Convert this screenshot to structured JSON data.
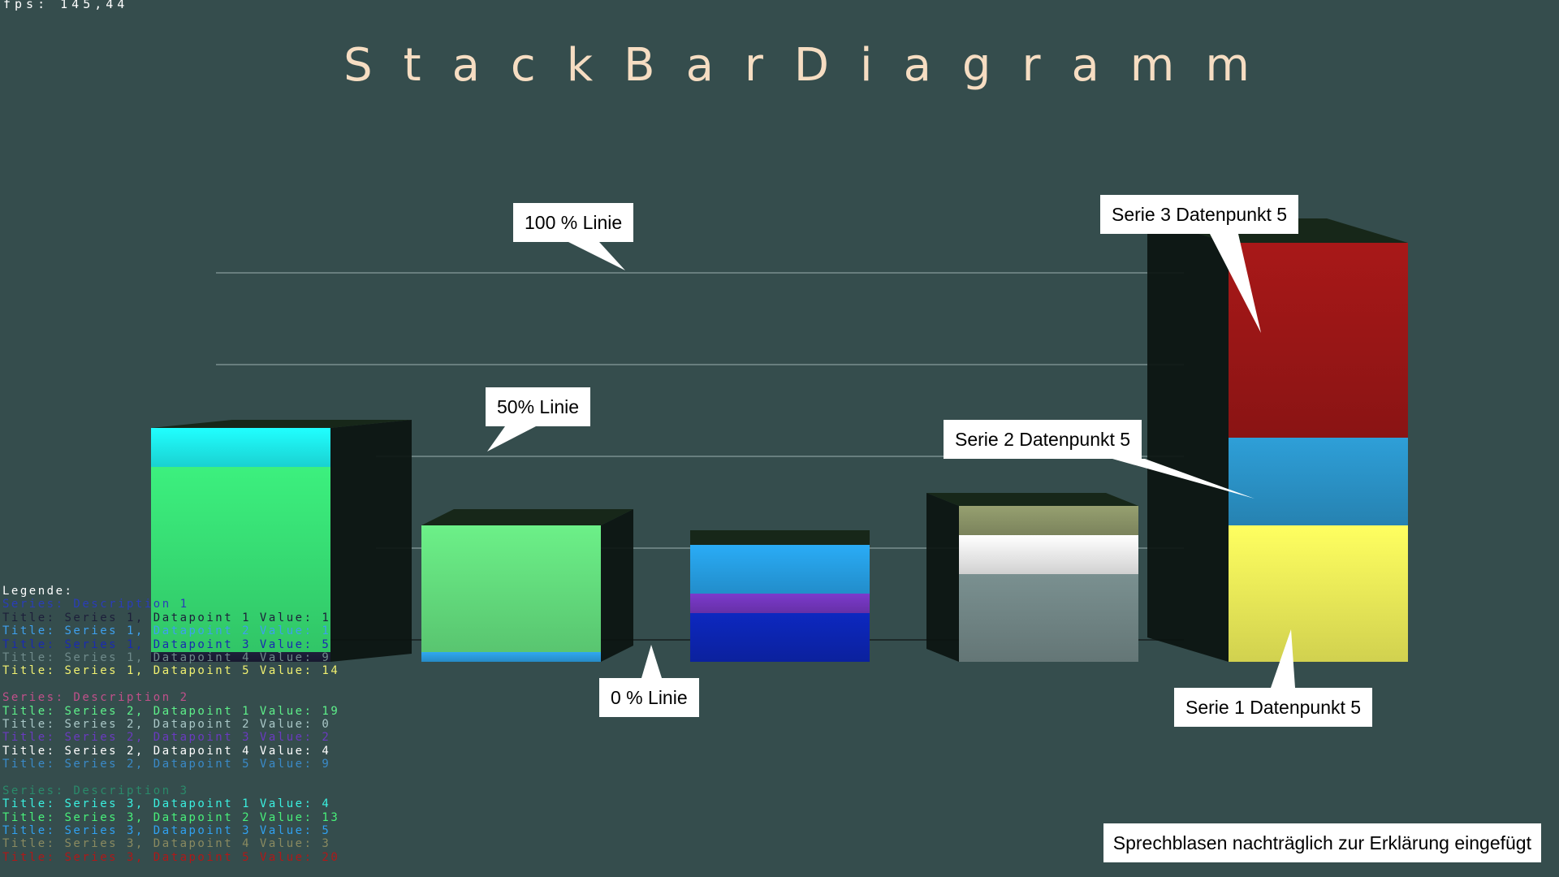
{
  "fps": "fps:  145,44",
  "title": "StackBarDiagramm",
  "note": "Sprechblasen nachträglich zur Erklärung eingefügt",
  "callouts": {
    "line100": "100 % Linie",
    "line50": "50% Linie",
    "line0": "0 % Linie",
    "s3p5": "Serie 3 Datenpunkt 5",
    "s2p5": "Serie 2 Datenpunkt 5",
    "s1p5": "Serie 1 Datenpunkt 5"
  },
  "legend": {
    "heading": "Legende:",
    "groups": [
      {
        "header": "Series: Description 1",
        "color": "#2a3db8",
        "items": [
          {
            "text": "Title: Series 1, Datapoint 1 Value: 1",
            "color": "#1d1f3a"
          },
          {
            "text": "Title: Series 1, Datapoint 2 Value: 1",
            "color": "#3ea0ee"
          },
          {
            "text": "Title: Series 1, Datapoint 3 Value: 5",
            "color": "#1a2bb0"
          },
          {
            "text": "Title: Series 1, Datapoint 4 Value: 9",
            "color": "#6f8a8a"
          },
          {
            "text": "Title: Series 1, Datapoint 5 Value: 14",
            "color": "#f0f070"
          }
        ]
      },
      {
        "header": "Series: Description 2",
        "color": "#c0508a",
        "items": [
          {
            "text": "Title: Series 2, Datapoint 1 Value: 19",
            "color": "#5ef08a"
          },
          {
            "text": "Title: Series 2, Datapoint 2 Value: 0",
            "color": "#aac8c8"
          },
          {
            "text": "Title: Series 2, Datapoint 3 Value: 2",
            "color": "#6a3ac0"
          },
          {
            "text": "Title: Series 2, Datapoint 4 Value: 4",
            "color": "#ffffff"
          },
          {
            "text": "Title: Series 2, Datapoint 5 Value: 9",
            "color": "#3a8ac8"
          }
        ]
      },
      {
        "header": "Series: Description 3",
        "color": "#2a8a6a",
        "items": [
          {
            "text": "Title: Series 3, Datapoint 1 Value: 4",
            "color": "#3af0e0"
          },
          {
            "text": "Title: Series 3, Datapoint 2 Value: 13",
            "color": "#48f07a"
          },
          {
            "text": "Title: Series 3, Datapoint 3 Value: 5",
            "color": "#30a0f0"
          },
          {
            "text": "Title: Series 3, Datapoint 4 Value: 3",
            "color": "#8a8a60"
          },
          {
            "text": "Title: Series 3, Datapoint 5 Value: 20",
            "color": "#b01818"
          }
        ]
      }
    ]
  },
  "chart_data": {
    "type": "bar",
    "stacked": true,
    "categories": [
      "Datapoint 1",
      "Datapoint 2",
      "Datapoint 3",
      "Datapoint 4",
      "Datapoint 5"
    ],
    "series": [
      {
        "name": "Series 1",
        "values": [
          1,
          1,
          5,
          9,
          14
        ],
        "colors": [
          "#1d1f3a",
          "#30a8f0",
          "#0d28c0",
          "#7a9090",
          "#ffff60"
        ]
      },
      {
        "name": "Series 2",
        "values": [
          19,
          0,
          2,
          4,
          9
        ],
        "colors": [
          "#3cf07e",
          "#5a7070",
          "#7c3acc",
          "#ffffff",
          "#2e9fd8"
        ]
      },
      {
        "name": "Series 3",
        "values": [
          4,
          13,
          5,
          3,
          20
        ],
        "colors": [
          "#20ffff",
          "#6cf088",
          "#2aacf6",
          "#96a070",
          "#a81818"
        ]
      }
    ],
    "gridlines": [
      0,
      25,
      50,
      75,
      100
    ],
    "ylim": [
      0,
      43
    ],
    "grid": true,
    "view": "3d"
  }
}
